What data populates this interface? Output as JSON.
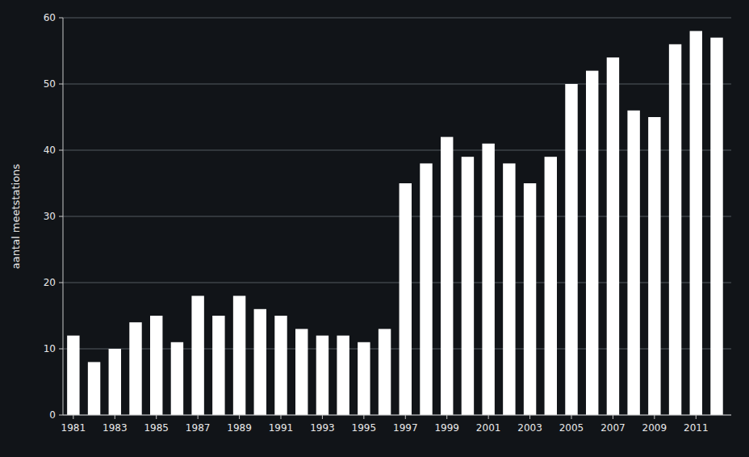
{
  "chart_data": {
    "type": "bar",
    "x": [
      1981,
      1982,
      1983,
      1984,
      1985,
      1986,
      1987,
      1988,
      1989,
      1990,
      1991,
      1992,
      1993,
      1994,
      1995,
      1996,
      1997,
      1998,
      1999,
      2000,
      2001,
      2002,
      2003,
      2004,
      2005,
      2006,
      2007,
      2008,
      2009,
      2010,
      2011,
      2012
    ],
    "values": [
      12,
      8,
      10,
      14,
      15,
      11,
      18,
      15,
      18,
      16,
      15,
      13,
      12,
      12,
      11,
      13,
      35,
      38,
      42,
      39,
      41,
      38,
      35,
      39,
      50,
      52,
      54,
      46,
      45,
      56,
      58,
      57
    ],
    "color": "#ffffff",
    "ylabel": "aantal meetstations",
    "xlim": [
      1980.5,
      2012.7
    ],
    "xticks": [
      1981,
      1983,
      1985,
      1987,
      1989,
      1991,
      1993,
      1995,
      1997,
      1999,
      2001,
      2003,
      2005,
      2007,
      2009,
      2011
    ],
    "ylim": [
      0,
      60
    ],
    "yticks": [
      0,
      10,
      20,
      30,
      40,
      50,
      60
    ],
    "grid": true
  }
}
